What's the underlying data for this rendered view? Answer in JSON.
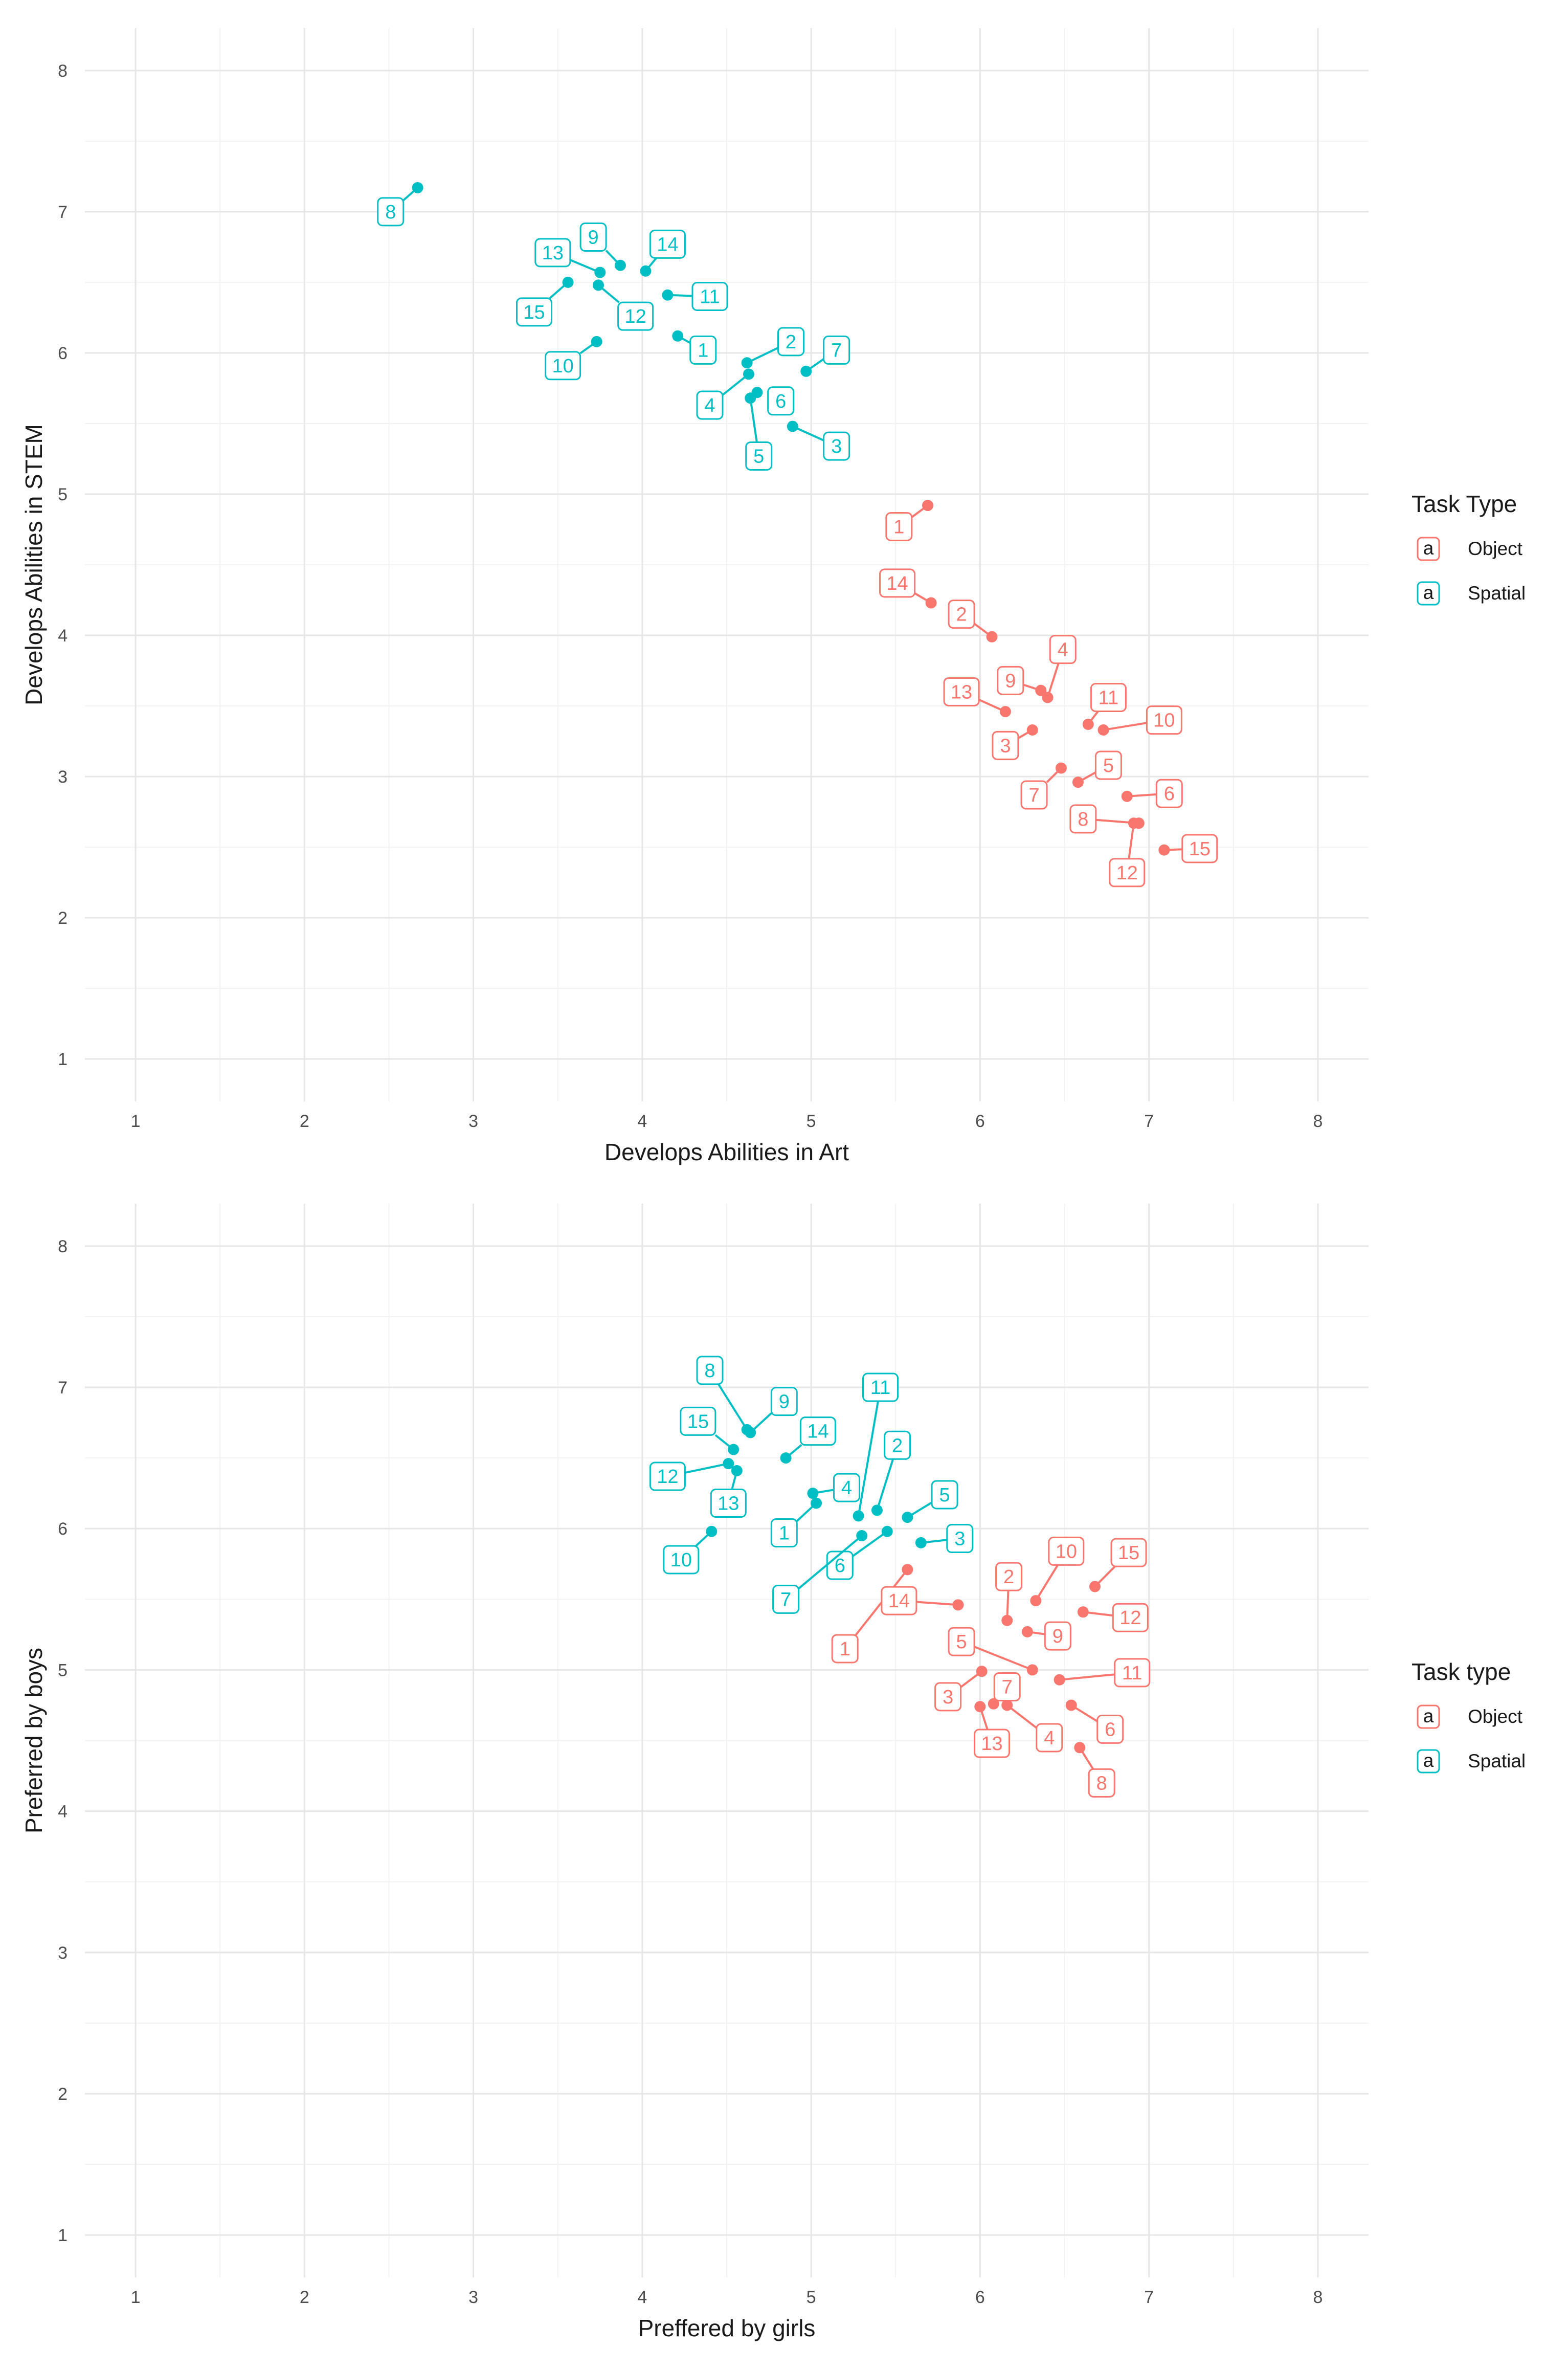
{
  "chart_data": [
    {
      "type": "scatter",
      "title": "",
      "xlabel": "Develops Abilities in Art",
      "ylabel": "Develops Abilities in STEM",
      "xlim": [
        0.7,
        8.3
      ],
      "ylim": [
        0.7,
        8.3
      ],
      "x_ticks": [
        "1",
        "2",
        "3",
        "4",
        "5",
        "6",
        "7",
        "8"
      ],
      "y_ticks": [
        "1",
        "2",
        "3",
        "4",
        "5",
        "6",
        "7",
        "8"
      ],
      "grid": true,
      "legend": {
        "title": "Task Type",
        "position": "right",
        "entries": [
          {
            "glyph": "a",
            "label": "Object",
            "color": "#F8766D"
          },
          {
            "glyph": "a",
            "label": "Spatial",
            "color": "#00BFC4"
          }
        ]
      },
      "series": [
        {
          "name": "Object",
          "color": "#F8766D",
          "points": [
            {
              "id": "1",
              "x": 5.69,
              "y": 4.92,
              "lx": 5.52,
              "ly": 4.77
            },
            {
              "id": "2",
              "x": 6.07,
              "y": 3.99,
              "lx": 5.89,
              "ly": 4.15
            },
            {
              "id": "3",
              "x": 6.31,
              "y": 3.33,
              "lx": 6.15,
              "ly": 3.22
            },
            {
              "id": "4",
              "x": 6.4,
              "y": 3.56,
              "lx": 6.49,
              "ly": 3.9
            },
            {
              "id": "5",
              "x": 6.58,
              "y": 2.96,
              "lx": 6.76,
              "ly": 3.08
            },
            {
              "id": "6",
              "x": 6.87,
              "y": 2.86,
              "lx": 7.12,
              "ly": 2.88
            },
            {
              "id": "7",
              "x": 6.48,
              "y": 3.06,
              "lx": 6.32,
              "ly": 2.87
            },
            {
              "id": "8",
              "x": 6.94,
              "y": 2.67,
              "lx": 6.61,
              "ly": 2.7
            },
            {
              "id": "9",
              "x": 6.36,
              "y": 3.61,
              "lx": 6.18,
              "ly": 3.68
            },
            {
              "id": "10",
              "x": 6.73,
              "y": 3.33,
              "lx": 7.09,
              "ly": 3.4
            },
            {
              "id": "11",
              "x": 6.64,
              "y": 3.37,
              "lx": 6.76,
              "ly": 3.56
            },
            {
              "id": "12",
              "x": 6.91,
              "y": 2.67,
              "lx": 6.87,
              "ly": 2.32
            },
            {
              "id": "13",
              "x": 6.15,
              "y": 3.46,
              "lx": 5.89,
              "ly": 3.6
            },
            {
              "id": "14",
              "x": 5.71,
              "y": 4.23,
              "lx": 5.51,
              "ly": 4.37
            },
            {
              "id": "15",
              "x": 7.09,
              "y": 2.48,
              "lx": 7.3,
              "ly": 2.49
            }
          ]
        },
        {
          "name": "Spatial",
          "color": "#00BFC4",
          "points": [
            {
              "id": "1",
              "x": 4.21,
              "y": 6.12,
              "lx": 4.36,
              "ly": 6.02
            },
            {
              "id": "2",
              "x": 4.62,
              "y": 5.93,
              "lx": 4.88,
              "ly": 6.08
            },
            {
              "id": "3",
              "x": 4.89,
              "y": 5.48,
              "lx": 5.15,
              "ly": 5.34
            },
            {
              "id": "4",
              "x": 4.63,
              "y": 5.85,
              "lx": 4.4,
              "ly": 5.63
            },
            {
              "id": "5",
              "x": 4.64,
              "y": 5.68,
              "lx": 4.69,
              "ly": 5.27
            },
            {
              "id": "6",
              "x": 4.68,
              "y": 5.72,
              "lx": 4.82,
              "ly": 5.66
            },
            {
              "id": "7",
              "x": 4.97,
              "y": 5.87,
              "lx": 5.15,
              "ly": 6.02
            },
            {
              "id": "8",
              "x": 2.67,
              "y": 7.17,
              "lx": 2.51,
              "ly": 7.0
            },
            {
              "id": "9",
              "x": 3.87,
              "y": 6.62,
              "lx": 3.71,
              "ly": 6.82
            },
            {
              "id": "10",
              "x": 3.73,
              "y": 6.08,
              "lx": 3.53,
              "ly": 5.91
            },
            {
              "id": "11",
              "x": 4.15,
              "y": 6.41,
              "lx": 4.4,
              "ly": 6.4
            },
            {
              "id": "12",
              "x": 3.74,
              "y": 6.48,
              "lx": 3.96,
              "ly": 6.26
            },
            {
              "id": "13",
              "x": 3.75,
              "y": 6.57,
              "lx": 3.47,
              "ly": 6.71
            },
            {
              "id": "14",
              "x": 4.02,
              "y": 6.58,
              "lx": 4.15,
              "ly": 6.77
            },
            {
              "id": "15",
              "x": 3.56,
              "y": 6.5,
              "lx": 3.36,
              "ly": 6.29
            }
          ]
        }
      ]
    },
    {
      "type": "scatter",
      "title": "",
      "xlabel": "Preffered by girls",
      "ylabel": "Preferred by boys",
      "xlim": [
        0.7,
        8.3
      ],
      "ylim": [
        0.7,
        8.3
      ],
      "x_ticks": [
        "1",
        "2",
        "3",
        "4",
        "5",
        "6",
        "7",
        "8"
      ],
      "y_ticks": [
        "1",
        "2",
        "3",
        "4",
        "5",
        "6",
        "7",
        "8"
      ],
      "grid": true,
      "legend": {
        "title": "Task type",
        "position": "right",
        "entries": [
          {
            "glyph": "a",
            "label": "Object",
            "color": "#F8766D"
          },
          {
            "glyph": "a",
            "label": "Spatial",
            "color": "#00BFC4"
          }
        ]
      },
      "series": [
        {
          "name": "Object",
          "color": "#F8766D",
          "points": [
            {
              "id": "1",
              "x": 5.57,
              "y": 5.71,
              "lx": 5.2,
              "ly": 5.15
            },
            {
              "id": "2",
              "x": 6.16,
              "y": 5.35,
              "lx": 6.17,
              "ly": 5.66
            },
            {
              "id": "3",
              "x": 6.01,
              "y": 4.99,
              "lx": 5.81,
              "ly": 4.81
            },
            {
              "id": "4",
              "x": 6.16,
              "y": 4.75,
              "lx": 6.41,
              "ly": 4.52
            },
            {
              "id": "5",
              "x": 6.31,
              "y": 5.0,
              "lx": 5.89,
              "ly": 5.2
            },
            {
              "id": "6",
              "x": 6.54,
              "y": 4.75,
              "lx": 6.77,
              "ly": 4.58
            },
            {
              "id": "7",
              "x": 6.08,
              "y": 4.76,
              "lx": 6.16,
              "ly": 4.88
            },
            {
              "id": "8",
              "x": 6.59,
              "y": 4.45,
              "lx": 6.72,
              "ly": 4.2
            },
            {
              "id": "9",
              "x": 6.28,
              "y": 5.27,
              "lx": 6.46,
              "ly": 5.24
            },
            {
              "id": "10",
              "x": 6.33,
              "y": 5.49,
              "lx": 6.51,
              "ly": 5.84
            },
            {
              "id": "11",
              "x": 6.47,
              "y": 4.93,
              "lx": 6.9,
              "ly": 4.98
            },
            {
              "id": "12",
              "x": 6.61,
              "y": 5.41,
              "lx": 6.89,
              "ly": 5.37
            },
            {
              "id": "13",
              "x": 6.0,
              "y": 4.74,
              "lx": 6.07,
              "ly": 4.48
            },
            {
              "id": "14",
              "x": 5.87,
              "y": 5.46,
              "lx": 5.52,
              "ly": 5.49
            },
            {
              "id": "15",
              "x": 6.68,
              "y": 5.59,
              "lx": 6.88,
              "ly": 5.83
            }
          ]
        },
        {
          "name": "Spatial",
          "color": "#00BFC4",
          "points": [
            {
              "id": "1",
              "x": 5.03,
              "y": 6.18,
              "lx": 4.84,
              "ly": 5.97
            },
            {
              "id": "2",
              "x": 5.39,
              "y": 6.13,
              "lx": 5.51,
              "ly": 6.59
            },
            {
              "id": "3",
              "x": 5.65,
              "y": 5.9,
              "lx": 5.88,
              "ly": 5.93
            },
            {
              "id": "4",
              "x": 5.01,
              "y": 6.25,
              "lx": 5.21,
              "ly": 6.29
            },
            {
              "id": "5",
              "x": 5.57,
              "y": 6.08,
              "lx": 5.79,
              "ly": 6.24
            },
            {
              "id": "6",
              "x": 5.45,
              "y": 5.98,
              "lx": 5.17,
              "ly": 5.74
            },
            {
              "id": "7",
              "x": 5.3,
              "y": 5.95,
              "lx": 4.85,
              "ly": 5.5
            },
            {
              "id": "8",
              "x": 4.62,
              "y": 6.7,
              "lx": 4.4,
              "ly": 7.12
            },
            {
              "id": "9",
              "x": 4.64,
              "y": 6.68,
              "lx": 4.84,
              "ly": 6.9
            },
            {
              "id": "10",
              "x": 4.41,
              "y": 5.98,
              "lx": 4.23,
              "ly": 5.78
            },
            {
              "id": "11",
              "x": 5.28,
              "y": 6.09,
              "lx": 5.41,
              "ly": 7.0
            },
            {
              "id": "12",
              "x": 4.51,
              "y": 6.46,
              "lx": 4.15,
              "ly": 6.37
            },
            {
              "id": "13",
              "x": 4.56,
              "y": 6.41,
              "lx": 4.51,
              "ly": 6.18
            },
            {
              "id": "14",
              "x": 4.85,
              "y": 6.5,
              "lx": 5.04,
              "ly": 6.69
            },
            {
              "id": "15",
              "x": 4.54,
              "y": 6.56,
              "lx": 4.33,
              "ly": 6.76
            }
          ]
        }
      ]
    }
  ]
}
